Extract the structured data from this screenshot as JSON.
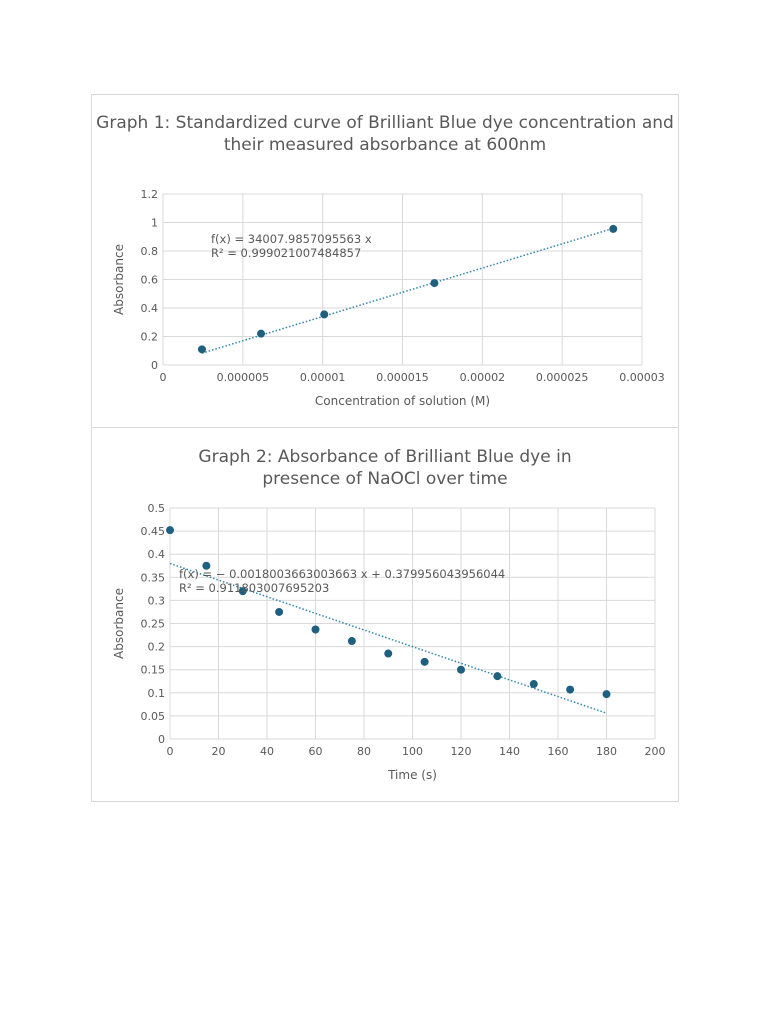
{
  "chart_data": [
    {
      "type": "scatter",
      "title": "Graph 1: Standardized curve of Brilliant Blue dye concentration and their measured absorbance at 600nm",
      "xlabel": "Concentration of solution (M)",
      "ylabel": "Absorbance",
      "xlim": [
        0,
        3e-05
      ],
      "ylim": [
        0,
        1.2
      ],
      "xticks": [
        "0",
        "0.000005",
        "0.00001",
        "0.000015",
        "0.00002",
        "0.000025",
        "0.00003"
      ],
      "yticks": [
        "0",
        "0.2",
        "0.4",
        "0.6",
        "0.8",
        "1",
        "1.2"
      ],
      "grid": true,
      "x": [
        2.44e-06,
        6.14e-06,
        1.01e-05,
        1.7e-05,
        2.82e-05
      ],
      "y": [
        0.11,
        0.22,
        0.355,
        0.575,
        0.955
      ],
      "trendline": {
        "slope": 34007.9857095563,
        "intercept": 0,
        "equation": "f(x) = 34007.9857095563 x",
        "r2": "R² = 0.999021007484857"
      },
      "marker_color": "#1f5f7f",
      "trend_color": "#2e86ab"
    },
    {
      "type": "scatter",
      "title": "Graph 2: Absorbance of Brilliant Blue dye in presence of NaOCl over time",
      "xlabel": "Time (s)",
      "ylabel": "Absorbance",
      "xlim": [
        0,
        200
      ],
      "ylim": [
        0,
        0.5
      ],
      "xticks": [
        "0",
        "20",
        "40",
        "60",
        "80",
        "100",
        "120",
        "140",
        "160",
        "180",
        "200"
      ],
      "yticks": [
        "0",
        "0.05",
        "0.1",
        "0.15",
        "0.2",
        "0.25",
        "0.3",
        "0.35",
        "0.4",
        "0.45",
        "0.5"
      ],
      "grid": true,
      "x": [
        0,
        15,
        30,
        45,
        60,
        75,
        90,
        105,
        120,
        135,
        150,
        165,
        180
      ],
      "y": [
        0.452,
        0.375,
        0.32,
        0.275,
        0.237,
        0.212,
        0.185,
        0.167,
        0.15,
        0.136,
        0.119,
        0.107,
        0.097
      ],
      "trendline": {
        "slope": -0.0018003663003663,
        "intercept": 0.379956043956044,
        "equation": "f(x) = − 0.0018003663003663 x + 0.379956043956044",
        "r2": "R² = 0.911803007695203"
      },
      "marker_color": "#1f5f7f",
      "trend_color": "#2e86ab"
    }
  ]
}
